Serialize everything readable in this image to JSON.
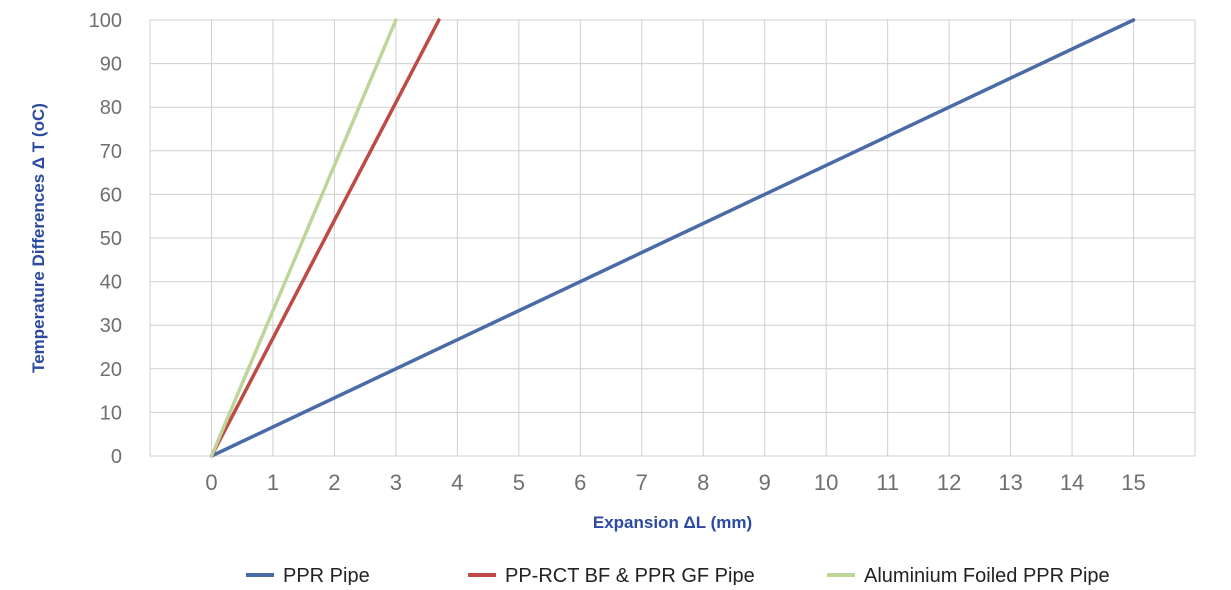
{
  "chart_data": {
    "type": "line",
    "xlabel": "Expansion ΔL (mm)",
    "ylabel": "Temperature Differences   Δ T (oC)",
    "xlim": [
      -1,
      16
    ],
    "ylim": [
      0,
      100
    ],
    "x_ticks": [
      0,
      1,
      2,
      3,
      4,
      5,
      6,
      7,
      8,
      9,
      10,
      11,
      12,
      13,
      14,
      15
    ],
    "y_ticks": [
      0,
      10,
      20,
      30,
      40,
      50,
      60,
      70,
      80,
      90,
      100
    ],
    "grid": true,
    "legend_position": "bottom",
    "series": [
      {
        "name": "PPR Pipe",
        "color": "#4a6aa8",
        "points": [
          [
            0,
            0
          ],
          [
            15,
            100
          ]
        ]
      },
      {
        "name": "PP-RCT BF & PPR GF Pipe",
        "color": "#bf4a45",
        "points": [
          [
            0,
            0
          ],
          [
            3.7,
            100
          ]
        ]
      },
      {
        "name": "Aluminium Foiled PPR Pipe",
        "color": "#bed59a",
        "points": [
          [
            0,
            0
          ],
          [
            3,
            100
          ]
        ]
      }
    ]
  }
}
